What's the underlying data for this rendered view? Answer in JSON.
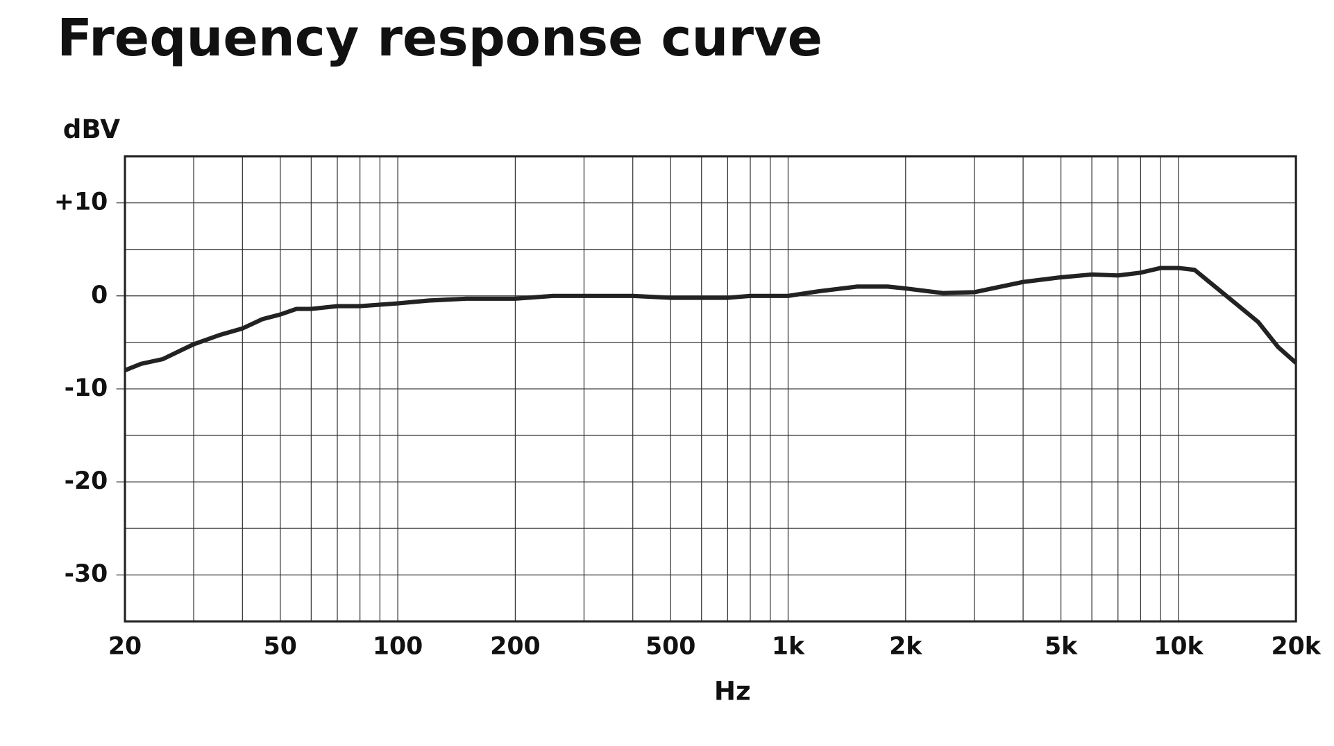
{
  "chart_data": {
    "type": "line",
    "title": "Frequency response curve",
    "y_label": "dBV",
    "x_label": "Hz",
    "xscale": "log",
    "grid": true,
    "xlim": [
      20,
      20000
    ],
    "ylim": [
      -35,
      15
    ],
    "xticks": [
      20,
      50,
      100,
      200,
      500,
      {
        "value": 1000,
        "label": "1k"
      },
      {
        "value": 2000,
        "label": "2k"
      },
      {
        "value": 5000,
        "label": "5k"
      },
      {
        "value": 10000,
        "label": "10k"
      },
      {
        "value": 20000,
        "label": "20k"
      }
    ],
    "xminor": [
      30,
      40,
      60,
      70,
      80,
      90,
      300,
      400,
      600,
      700,
      800,
      900,
      3000,
      4000,
      6000,
      7000,
      8000,
      9000
    ],
    "yticks": [
      -30,
      -20,
      -10,
      0,
      {
        "value": 10,
        "label": "+10"
      }
    ],
    "yminor": [
      -25,
      -15,
      -5,
      5
    ],
    "series": [
      {
        "color": "#222222",
        "x": [
          20,
          22,
          25,
          28,
          30,
          35,
          40,
          45,
          50,
          55,
          60,
          70,
          80,
          100,
          120,
          150,
          200,
          250,
          300,
          400,
          500,
          700,
          800,
          1000,
          1200,
          1500,
          1800,
          2000,
          2500,
          3000,
          4000,
          5000,
          6000,
          7000,
          8000,
          9000,
          10000,
          11000,
          12000,
          14000,
          16000,
          18000,
          20000
        ],
        "values": [
          -8,
          -7.3,
          -6.8,
          -5.8,
          -5.2,
          -4.2,
          -3.5,
          -2.5,
          -2,
          -1.4,
          -1.4,
          -1.1,
          -1.1,
          -0.8,
          -0.5,
          -0.3,
          -0.3,
          0,
          0,
          0,
          -0.2,
          -0.2,
          0,
          0,
          0.5,
          1,
          1,
          0.8,
          0.3,
          0.4,
          1.5,
          2,
          2.3,
          2.2,
          2.5,
          3,
          3,
          2.8,
          1.5,
          -0.8,
          -2.8,
          -5.5,
          -7.2
        ]
      }
    ]
  }
}
